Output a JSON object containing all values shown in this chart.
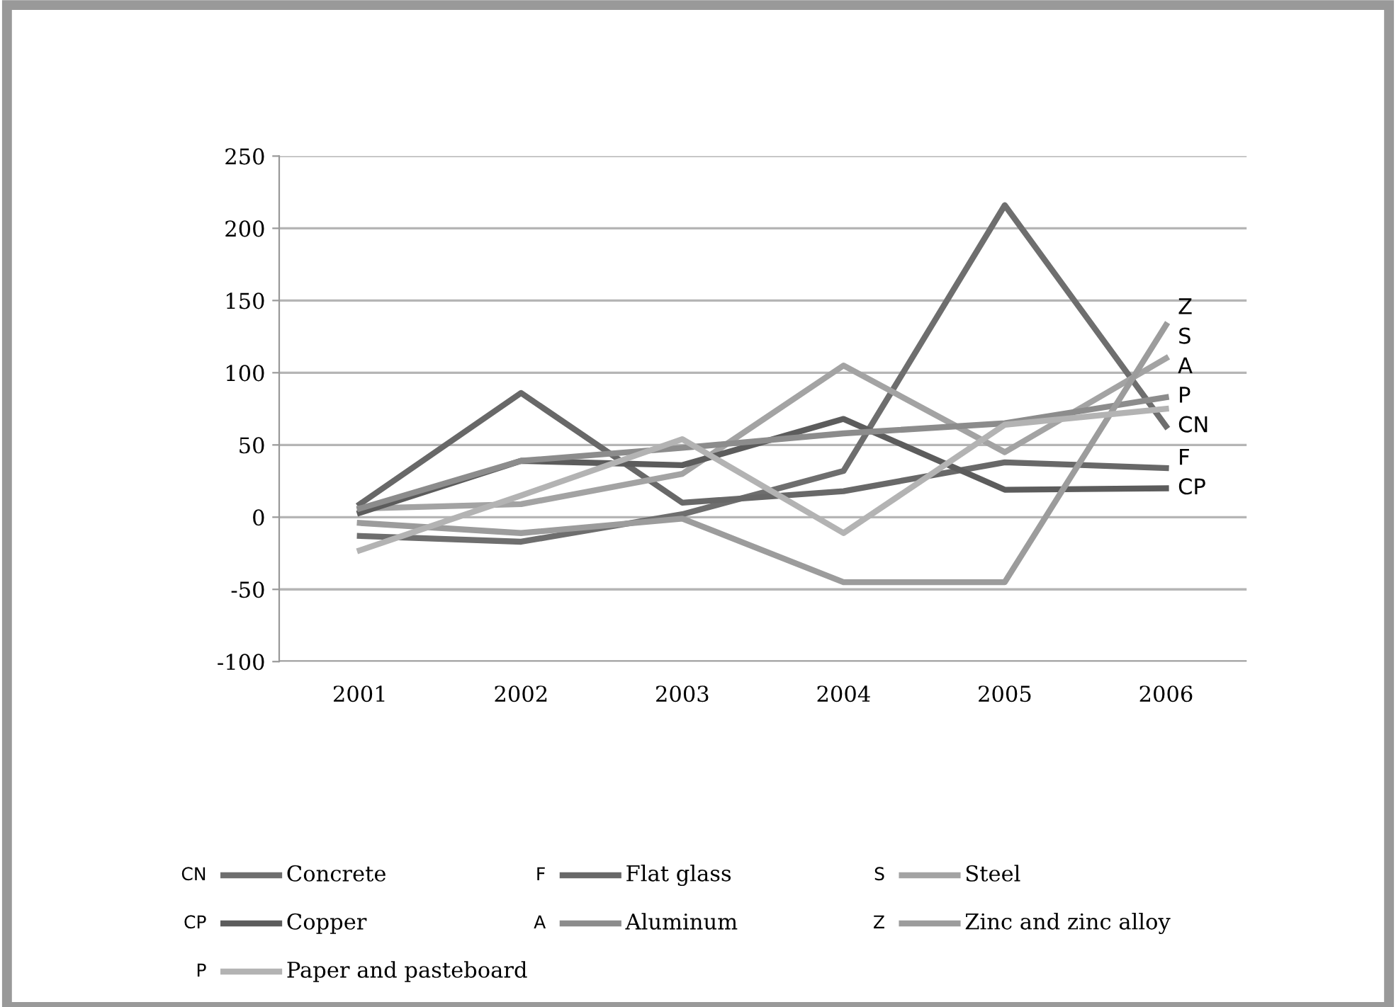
{
  "chart_data": {
    "type": "line",
    "categories": [
      "2001",
      "2002",
      "2003",
      "2004",
      "2005",
      "2006"
    ],
    "series": [
      {
        "name": "Concrete",
        "color": "#6e6e6e",
        "values": [
          -13,
          -17,
          2,
          32,
          216,
          63
        ]
      },
      {
        "name": "Flat glass",
        "color": "#686868",
        "values": [
          9,
          86,
          10,
          18,
          38,
          34
        ]
      },
      {
        "name": "Steel",
        "color": "#a3a3a3",
        "values": [
          6,
          9,
          30,
          105,
          45,
          110
        ]
      },
      {
        "name": "Copper",
        "color": "#5c5c5c",
        "values": [
          3,
          39,
          36,
          68,
          19,
          20
        ]
      },
      {
        "name": "Aluminum",
        "color": "#8c8c8c",
        "values": [
          6,
          39,
          48,
          58,
          65,
          83
        ]
      },
      {
        "name": "Zinc and zinc alloy",
        "color": "#9c9c9c",
        "values": [
          -4,
          -11,
          -1,
          -45,
          -45,
          133
        ]
      },
      {
        "name": "Paper and pasteboard",
        "color": "#b3b3b3",
        "values": [
          -23,
          15,
          54,
          -11,
          64,
          75
        ]
      }
    ],
    "annotations": [
      {
        "text": "CN",
        "x": "2006",
        "y": 63
      },
      {
        "text": "F",
        "x": "2006",
        "y": 34
      },
      {
        "text": "S",
        "x": "2006",
        "y": 110
      },
      {
        "text": "CP",
        "x": "2006",
        "y": 20
      },
      {
        "text": "A",
        "x": "2006",
        "y": 83
      },
      {
        "text": "Z",
        "x": "2006",
        "y": 133
      },
      {
        "text": "P",
        "x": "2006",
        "y": 75
      }
    ],
    "ylim": [
      -100,
      250
    ],
    "yticks": [
      -100,
      -50,
      0,
      50,
      100,
      150,
      200,
      250
    ],
    "grid": "y",
    "legend": "bottom",
    "marker": "none",
    "line_style": "solid"
  }
}
